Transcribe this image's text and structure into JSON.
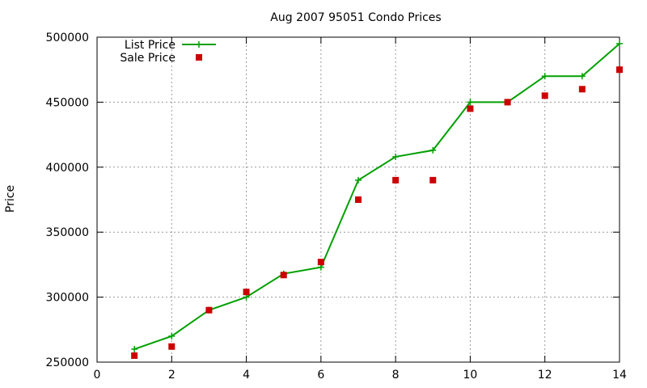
{
  "chart_data": {
    "type": "line",
    "title": "Aug 2007 95051 Condo Prices",
    "xlabel": "",
    "ylabel": "Price",
    "xlim": [
      0,
      14
    ],
    "ylim": [
      250000,
      500000
    ],
    "xticks": [
      0,
      2,
      4,
      6,
      8,
      10,
      12,
      14
    ],
    "yticks": [
      250000,
      300000,
      350000,
      400000,
      450000,
      500000
    ],
    "grid": true,
    "legend_position": "top-left",
    "series": [
      {
        "name": "List Price",
        "style": "line+cross",
        "color": "#00a000",
        "x": [
          1,
          2,
          3,
          4,
          5,
          6,
          7,
          8,
          9,
          10,
          11,
          12,
          13,
          14
        ],
        "y": [
          260000,
          270000,
          290000,
          300000,
          318000,
          323000,
          390000,
          408000,
          413000,
          450000,
          450000,
          470000,
          470000,
          495000
        ]
      },
      {
        "name": "Sale Price",
        "style": "square",
        "color": "#cc0000",
        "x": [
          1,
          2,
          3,
          4,
          5,
          6,
          7,
          8,
          9,
          10,
          11,
          12,
          13,
          14
        ],
        "y": [
          255000,
          262000,
          290000,
          304000,
          317000,
          327000,
          375000,
          390000,
          390000,
          445000,
          450000,
          455000,
          460000,
          475000
        ]
      }
    ]
  }
}
